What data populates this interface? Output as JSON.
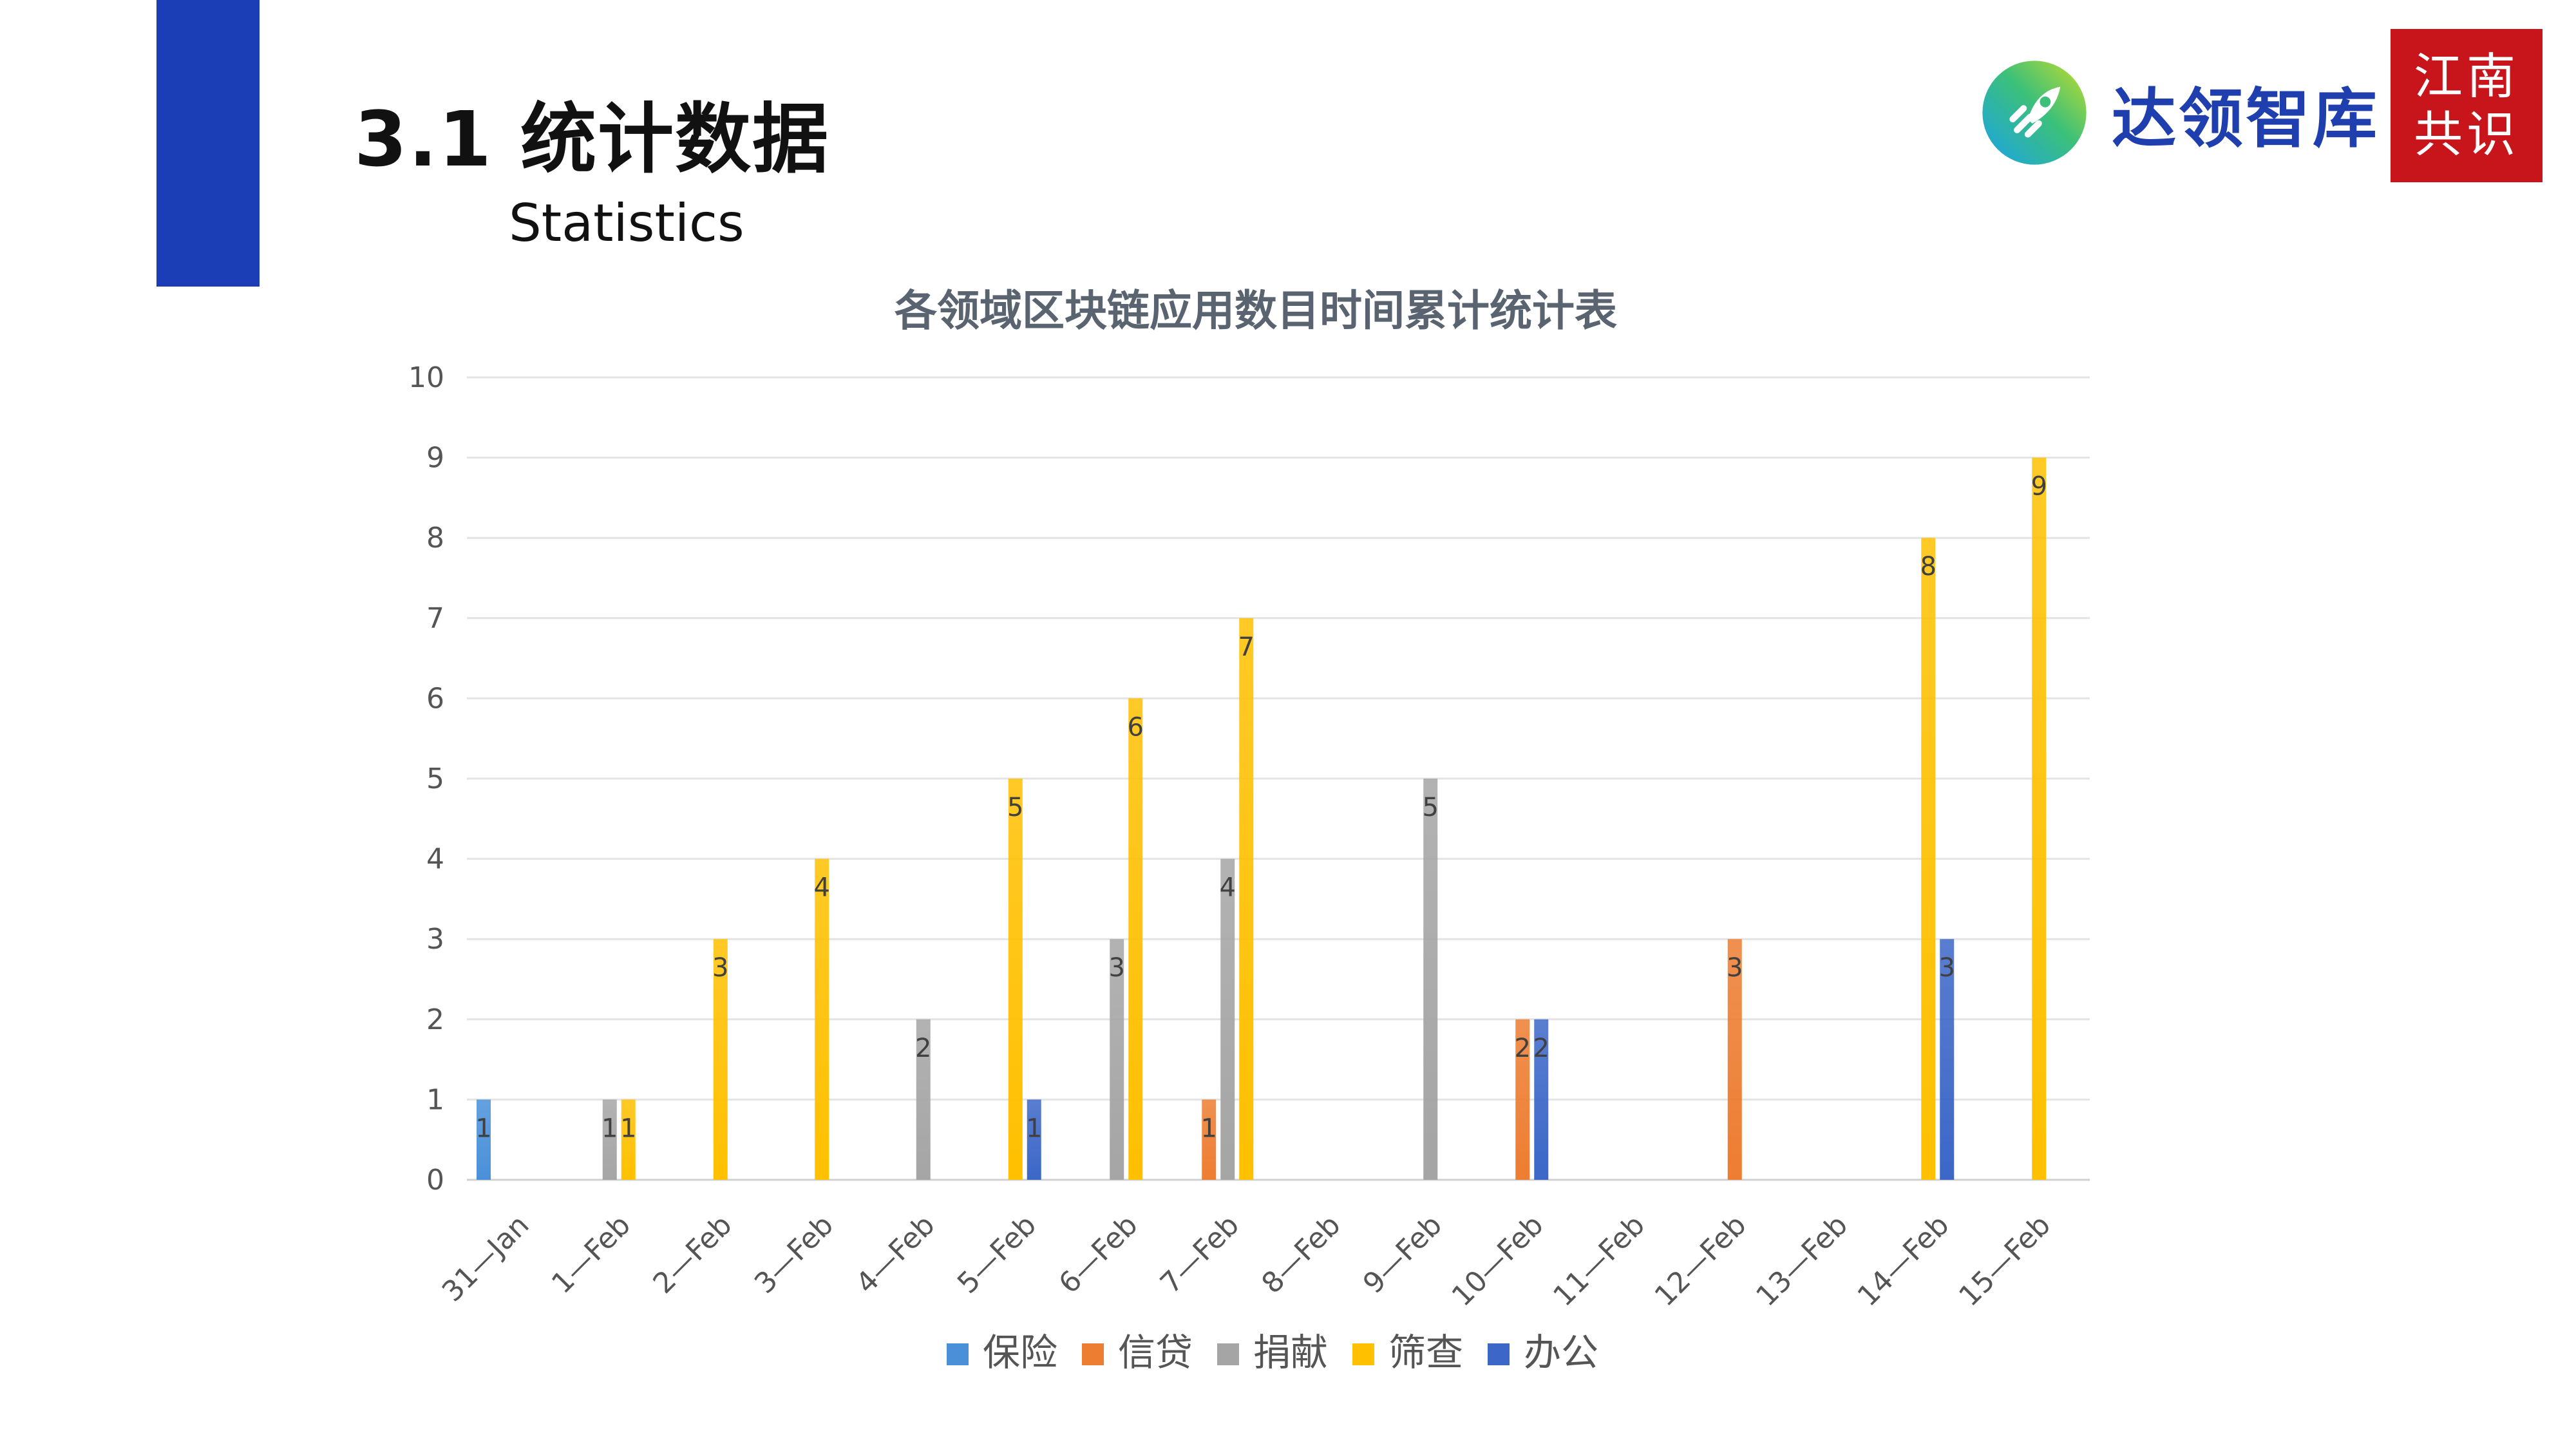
{
  "header": {
    "title": "3.1 统计数据",
    "subtitle": "Statistics"
  },
  "branding": {
    "logo_text": "达领智库",
    "logo_icon": "rocket-gradient-logo",
    "seal_line1": "江南",
    "seal_line2": "共识",
    "accent_color": "#1b3db5",
    "seal_color": "#c8141b"
  },
  "chart_data": {
    "type": "bar",
    "title": "各领域区块链应用数目时间累计统计表",
    "xlabel": "",
    "ylabel": "",
    "ylim": [
      0,
      10
    ],
    "yticks": [
      0,
      1,
      2,
      3,
      4,
      5,
      6,
      7,
      8,
      9,
      10
    ],
    "grid": true,
    "legend_position": "bottom",
    "categories": [
      "31-Jan",
      "1-Feb",
      "2-Feb",
      "3-Feb",
      "4-Feb",
      "5-Feb",
      "6-Feb",
      "7-Feb",
      "8-Feb",
      "9-Feb",
      "10-Feb",
      "11-Feb",
      "12-Feb",
      "13-Feb",
      "14-Feb",
      "15-Feb"
    ],
    "series": [
      {
        "name": "保险",
        "color": "#4a90d9",
        "values": [
          1,
          null,
          null,
          null,
          null,
          null,
          null,
          null,
          null,
          null,
          null,
          null,
          null,
          null,
          null,
          null
        ]
      },
      {
        "name": "信贷",
        "color": "#ed7d31",
        "values": [
          null,
          null,
          null,
          null,
          null,
          null,
          null,
          1,
          null,
          null,
          2,
          null,
          3,
          null,
          null,
          null
        ]
      },
      {
        "name": "捐献",
        "color": "#a5a5a5",
        "values": [
          null,
          1,
          null,
          null,
          2,
          null,
          3,
          4,
          null,
          5,
          null,
          null,
          null,
          null,
          null,
          null
        ]
      },
      {
        "name": "筛查",
        "color": "#ffc000",
        "values": [
          null,
          1,
          3,
          4,
          null,
          5,
          6,
          7,
          null,
          null,
          null,
          null,
          null,
          null,
          8,
          9
        ]
      },
      {
        "name": "办公",
        "color": "#3c67c8",
        "values": [
          null,
          null,
          null,
          null,
          null,
          1,
          null,
          null,
          null,
          null,
          2,
          null,
          null,
          null,
          3,
          null
        ]
      }
    ]
  }
}
